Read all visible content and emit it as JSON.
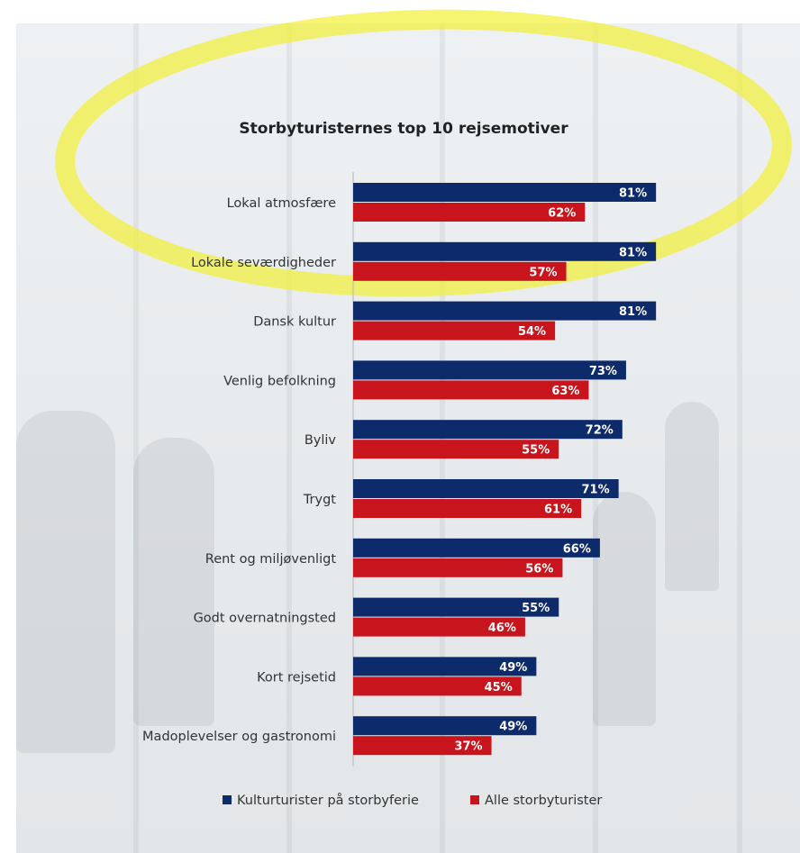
{
  "chart_data": {
    "type": "bar",
    "orientation": "horizontal",
    "title": "Storbyturisternes top 10 rejsemotiver",
    "categories": [
      "Lokal atmosfære",
      "Lokale seværdigheder",
      "Dansk kultur",
      "Venlig befolkning",
      "Byliv",
      "Trygt",
      "Rent og miljøvenligt",
      "Godt overnatningsted",
      "Kort rejsetid",
      "Madoplevelser og gastronomi"
    ],
    "series": [
      {
        "name": "Kulturturister på storbyferie",
        "color": "#0d2a6b",
        "values": [
          81,
          81,
          81,
          73,
          72,
          71,
          66,
          55,
          49,
          49
        ]
      },
      {
        "name": "Alle storbyturister",
        "color": "#c8141c",
        "values": [
          62,
          57,
          54,
          63,
          55,
          61,
          56,
          46,
          45,
          37
        ]
      }
    ],
    "value_suffix": "%",
    "legend_position": "bottom",
    "grid": false,
    "highlight": {
      "shape": "yellow-marker-ellipse",
      "color": "#f2f03a",
      "covers_categories": [
        "Lokal atmosfære",
        "Lokale seværdigheder"
      ]
    }
  }
}
